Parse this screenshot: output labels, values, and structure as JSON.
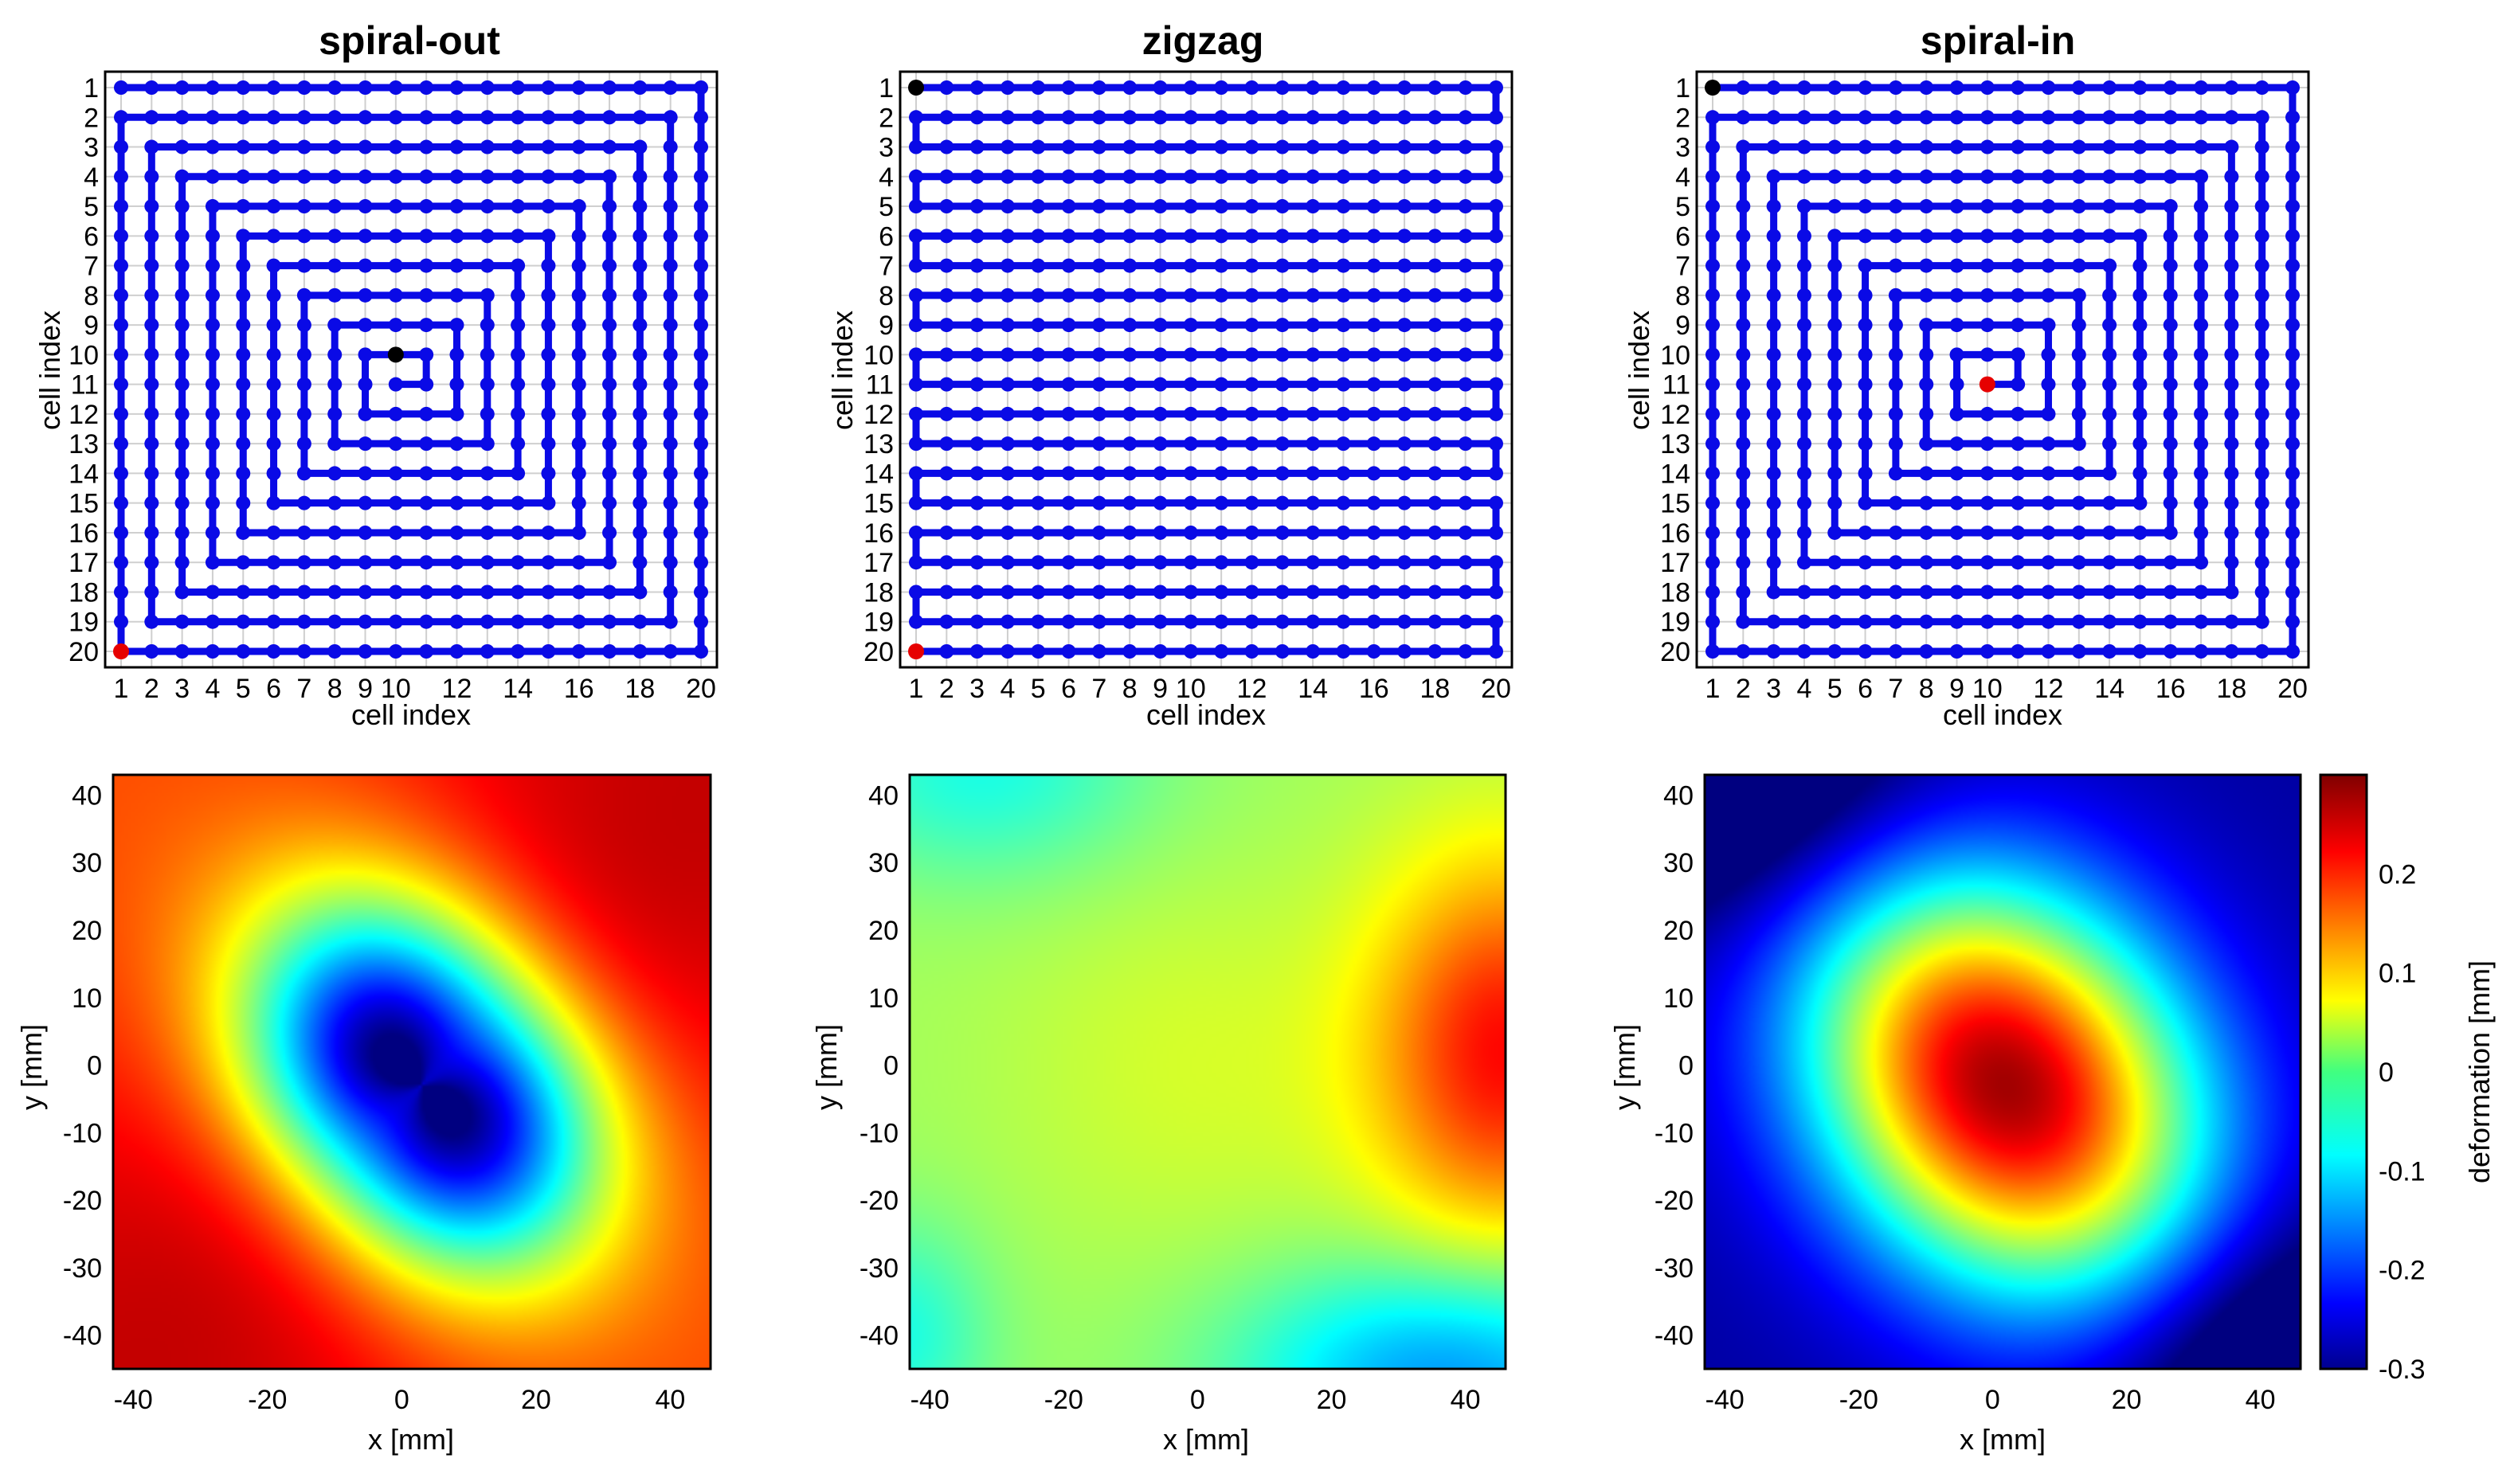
{
  "colors": {
    "path": "#0a0ae6",
    "start": "#000000",
    "end": "#e60000",
    "grid": "#cfcfcf",
    "axis": "#000000",
    "colormap": "jet"
  },
  "chart_data": [
    {
      "type": "scatter",
      "id": "spiral-out",
      "title": "spiral-out",
      "xlabel": "cell index",
      "ylabel": "cell index",
      "grid_size": 20,
      "xticks": [
        "1",
        "2",
        "3",
        "4",
        "5",
        "6",
        "7",
        "8",
        "9",
        "10",
        "12",
        "14",
        "16",
        "18",
        "20"
      ],
      "yticks": [
        "1",
        "2",
        "3",
        "4",
        "5",
        "6",
        "7",
        "8",
        "9",
        "10",
        "11",
        "12",
        "13",
        "14",
        "15",
        "16",
        "17",
        "18",
        "19",
        "20"
      ],
      "start_cell": [
        10,
        10
      ],
      "end_cell": [
        1,
        20
      ]
    },
    {
      "type": "scatter",
      "id": "zigzag",
      "title": "zigzag",
      "xlabel": "cell index",
      "ylabel": "cell index",
      "grid_size": 20,
      "xticks": [
        "1",
        "2",
        "3",
        "4",
        "5",
        "6",
        "7",
        "8",
        "9",
        "10",
        "12",
        "14",
        "16",
        "18",
        "20"
      ],
      "yticks": [
        "1",
        "2",
        "3",
        "4",
        "5",
        "6",
        "7",
        "8",
        "9",
        "10",
        "11",
        "12",
        "13",
        "14",
        "15",
        "16",
        "17",
        "18",
        "19",
        "20"
      ],
      "start_cell": [
        1,
        1
      ],
      "end_cell": [
        1,
        20
      ]
    },
    {
      "type": "scatter",
      "id": "spiral-in",
      "title": "spiral-in",
      "xlabel": "cell index",
      "ylabel": "cell index",
      "grid_size": 20,
      "xticks": [
        "1",
        "2",
        "3",
        "4",
        "5",
        "6",
        "7",
        "8",
        "9",
        "10",
        "12",
        "14",
        "16",
        "18",
        "20"
      ],
      "yticks": [
        "1",
        "2",
        "3",
        "4",
        "5",
        "6",
        "7",
        "8",
        "9",
        "10",
        "11",
        "12",
        "13",
        "14",
        "15",
        "16",
        "17",
        "18",
        "19",
        "20"
      ],
      "start_cell": [
        1,
        1
      ],
      "end_cell": [
        10,
        11
      ]
    },
    {
      "type": "heatmap",
      "id": "deformation-spiral-out",
      "xlabel": "x [mm]",
      "ylabel": "y [mm]",
      "xlim": [
        -43,
        46
      ],
      "ylim": [
        -45,
        43
      ],
      "xticks": [
        "-40",
        "-20",
        "0",
        "20",
        "40"
      ],
      "yticks": [
        "40",
        "30",
        "20",
        "10",
        "0",
        "-10",
        "-20",
        "-30",
        "-40"
      ],
      "pattern": "spiral-out"
    },
    {
      "type": "heatmap",
      "id": "deformation-zigzag",
      "xlabel": "x [mm]",
      "ylabel": "y [mm]",
      "xlim": [
        -43,
        46
      ],
      "ylim": [
        -45,
        43
      ],
      "xticks": [
        "-40",
        "-20",
        "0",
        "20",
        "40"
      ],
      "yticks": [
        "40",
        "30",
        "20",
        "10",
        "0",
        "-10",
        "-20",
        "-30",
        "-40"
      ],
      "pattern": "zigzag"
    },
    {
      "type": "heatmap",
      "id": "deformation-spiral-in",
      "xlabel": "x [mm]",
      "ylabel": "y [mm]",
      "xlim": [
        -43,
        46
      ],
      "ylim": [
        -45,
        43
      ],
      "xticks": [
        "-40",
        "-20",
        "0",
        "20",
        "40"
      ],
      "yticks": [
        "40",
        "30",
        "20",
        "10",
        "0",
        "-10",
        "-20",
        "-30",
        "-40"
      ],
      "pattern": "spiral-in"
    }
  ],
  "colorbar": {
    "label": "deformation [mm]",
    "range": [
      -0.3,
      0.3
    ],
    "ticks": [
      "0.2",
      "0.1",
      "0",
      "-0.1",
      "-0.2",
      "-0.3"
    ]
  }
}
